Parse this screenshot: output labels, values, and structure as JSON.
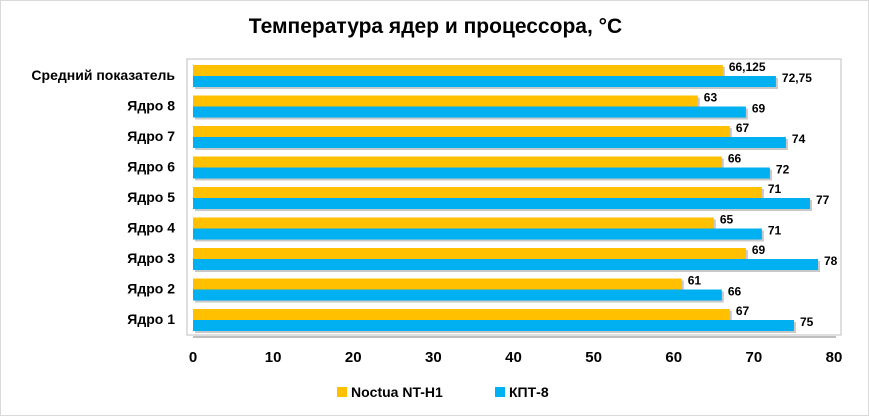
{
  "chart_data": {
    "type": "bar",
    "orientation": "horizontal",
    "title": "Температура ядер и процессора, °C",
    "categories": [
      "Средний показатель",
      "Ядро 8",
      "Ядро 7",
      "Ядро 6",
      "Ядро 5",
      "Ядро 4",
      "Ядро 3",
      "Ядро 2",
      "Ядро 1"
    ],
    "series": [
      {
        "name": "Noctua NT-H1",
        "color": "#FFC000",
        "values": [
          66.125,
          63,
          67,
          66,
          71,
          65,
          69,
          61,
          67
        ],
        "labels": [
          "66,125",
          "63",
          "67",
          "66",
          "71",
          "65",
          "69",
          "61",
          "67"
        ]
      },
      {
        "name": "КПТ-8",
        "color": "#00B0F0",
        "values": [
          72.75,
          69,
          74,
          72,
          77,
          71,
          78,
          66,
          75
        ],
        "labels": [
          "72,75",
          "69",
          "74",
          "72",
          "77",
          "71",
          "78",
          "66",
          "75"
        ]
      }
    ],
    "xlim": [
      0,
      80
    ],
    "xticks": [
      "0",
      "10",
      "20",
      "30",
      "40",
      "50",
      "60",
      "70",
      "80"
    ],
    "xlabel": "",
    "ylabel": "",
    "grid": false,
    "legend": "bottom"
  }
}
